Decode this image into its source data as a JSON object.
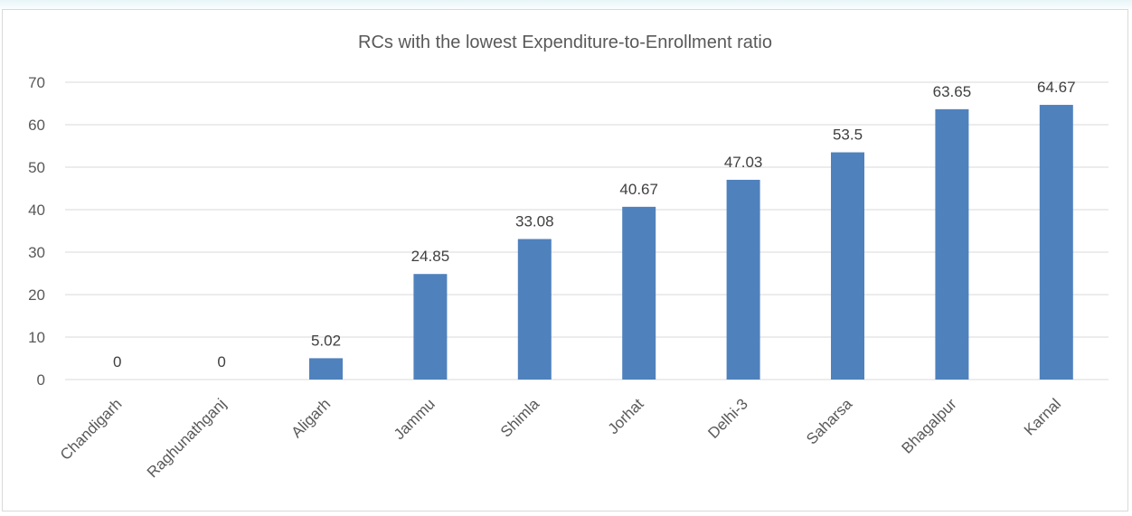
{
  "chart_data": {
    "type": "bar",
    "title": "RCs with the lowest Expenditure-to-Enrollment ratio",
    "xlabel": "",
    "ylabel": "",
    "categories": [
      "Chandigarh",
      "Raghunathganj",
      "Aligarh",
      "Jammu",
      "Shimla",
      "Jorhat",
      "Delhi-3",
      "Saharsa",
      "Bhagalpur",
      "Karnal"
    ],
    "series": [
      {
        "values": [
          0,
          0,
          5.02,
          24.85,
          33.08,
          40.67,
          47.03,
          53.5,
          63.65,
          64.67
        ],
        "value_labels": [
          "0",
          "0",
          "5.02",
          "24.85",
          "33.08",
          "40.67",
          "47.03",
          "53.5",
          "63.65",
          "64.67"
        ],
        "color": "#4f81bd"
      }
    ],
    "ylim": [
      0,
      70
    ],
    "yticks": [
      0,
      10,
      20,
      30,
      40,
      50,
      60,
      70
    ],
    "grid": true,
    "legend": "none"
  }
}
